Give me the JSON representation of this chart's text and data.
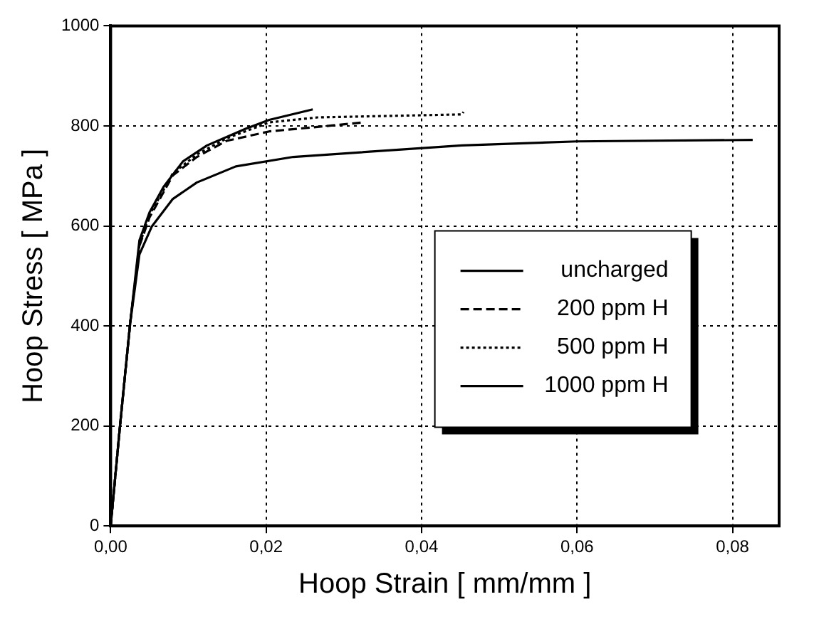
{
  "chart_data": {
    "type": "line",
    "xlabel": "Hoop Strain [ mm/mm ]",
    "ylabel": "Hoop Stress [ MPa ]",
    "xlim": [
      0,
      0.086
    ],
    "xticks": [
      {
        "value": 0,
        "label": "0,00"
      },
      {
        "value": 0.02,
        "label": "0,02"
      },
      {
        "value": 0.04,
        "label": "0,04"
      },
      {
        "value": 0.06,
        "label": "0,06"
      },
      {
        "value": 0.08,
        "label": "0,08"
      }
    ],
    "ylim": [
      0,
      1000
    ],
    "yticks": [
      0,
      200,
      400,
      600,
      800,
      1000
    ],
    "grid": true,
    "legend": "right",
    "marker": "none",
    "series": [
      {
        "name": "uncharged",
        "color": "#000000",
        "line_style": "solid",
        "x": [
          0,
          0.0012,
          0.0025,
          0.0037,
          0.0053,
          0.008,
          0.0111,
          0.0161,
          0.0235,
          0.0452,
          0.06,
          0.0826
        ],
        "values": [
          0,
          200,
          404,
          543,
          599,
          654,
          687,
          719,
          738,
          761,
          769,
          772
        ]
      },
      {
        "name": "200 ppm H",
        "color": "#000000",
        "line_style": "dashed",
        "x": [
          0,
          0.0012,
          0.0025,
          0.0037,
          0.005,
          0.008,
          0.0111,
          0.0149,
          0.0204,
          0.0266,
          0.0325
        ],
        "values": [
          0,
          200,
          404,
          560,
          617,
          701,
          738,
          770,
          789,
          798,
          807
        ]
      },
      {
        "name": "500 ppm H",
        "color": "#000000",
        "line_style": "dotted",
        "x": [
          0,
          0.0012,
          0.0025,
          0.0037,
          0.005,
          0.008,
          0.0111,
          0.0149,
          0.0204,
          0.0266,
          0.0452,
          0.0454
        ],
        "values": [
          0,
          200,
          404,
          562,
          622,
          705,
          743,
          775,
          807,
          817,
          823,
          828
        ]
      },
      {
        "name": "1000 ppm H",
        "color": "#000000",
        "line_style": "solid",
        "x": [
          0,
          0.0012,
          0.0025,
          0.0037,
          0.005,
          0.0068,
          0.0093,
          0.0124,
          0.0173,
          0.0204,
          0.026
        ],
        "values": [
          0,
          200,
          404,
          571,
          627,
          678,
          729,
          761,
          794,
          812,
          833
        ]
      }
    ]
  }
}
